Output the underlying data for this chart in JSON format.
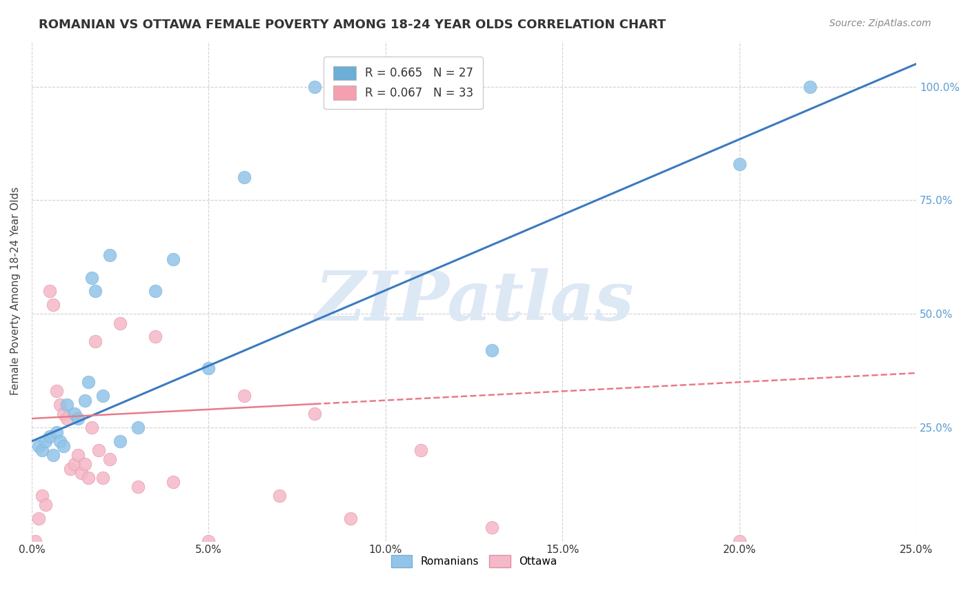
{
  "title": "ROMANIAN VS OTTAWA FEMALE POVERTY AMONG 18-24 YEAR OLDS CORRELATION CHART",
  "source": "Source: ZipAtlas.com",
  "xlabel": "",
  "ylabel": "Female Poverty Among 18-24 Year Olds",
  "xlim": [
    0.0,
    0.25
  ],
  "ylim": [
    0.0,
    1.1
  ],
  "xticks": [
    0.0,
    0.05,
    0.1,
    0.15,
    0.2,
    0.25
  ],
  "ytick_positions": [
    0.25,
    0.5,
    0.75,
    1.0
  ],
  "ytick_labels": [
    "25.0%",
    "50.0%",
    "75.0%",
    "100.0%"
  ],
  "xtick_labels": [
    "0.0%",
    "5.0%",
    "10.0%",
    "15.0%",
    "20.0%",
    "25.0%"
  ],
  "legend_items": [
    {
      "label": "R = 0.665   N = 27",
      "color": "#6baed6",
      "series": "Romanians"
    },
    {
      "label": "R = 0.067   N = 33",
      "color": "#f4a0b0",
      "series": "Ottawa"
    }
  ],
  "romanians_x": [
    0.002,
    0.003,
    0.004,
    0.005,
    0.006,
    0.007,
    0.008,
    0.009,
    0.01,
    0.012,
    0.013,
    0.015,
    0.016,
    0.017,
    0.018,
    0.02,
    0.022,
    0.025,
    0.03,
    0.035,
    0.04,
    0.05,
    0.06,
    0.08,
    0.13,
    0.2,
    0.22
  ],
  "romanians_y": [
    0.21,
    0.2,
    0.22,
    0.23,
    0.19,
    0.24,
    0.22,
    0.21,
    0.3,
    0.28,
    0.27,
    0.31,
    0.35,
    0.58,
    0.55,
    0.32,
    0.63,
    0.22,
    0.25,
    0.55,
    0.62,
    0.38,
    0.8,
    1.0,
    0.42,
    0.83,
    1.0
  ],
  "ottawa_x": [
    0.001,
    0.002,
    0.003,
    0.004,
    0.005,
    0.006,
    0.007,
    0.008,
    0.009,
    0.01,
    0.011,
    0.012,
    0.013,
    0.014,
    0.015,
    0.016,
    0.017,
    0.018,
    0.019,
    0.02,
    0.022,
    0.025,
    0.03,
    0.035,
    0.04,
    0.05,
    0.06,
    0.07,
    0.08,
    0.09,
    0.11,
    0.13,
    0.2
  ],
  "ottawa_y": [
    0.0,
    0.05,
    0.1,
    0.08,
    0.55,
    0.52,
    0.33,
    0.3,
    0.28,
    0.27,
    0.16,
    0.17,
    0.19,
    0.15,
    0.17,
    0.14,
    0.25,
    0.44,
    0.2,
    0.14,
    0.18,
    0.48,
    0.12,
    0.45,
    0.13,
    0.0,
    0.32,
    0.1,
    0.28,
    0.05,
    0.2,
    0.03,
    0.0
  ],
  "blue_line_color": "#3a7abf",
  "pink_line_color": "#e87a8a",
  "scatter_blue": "#91c4e8",
  "scatter_pink": "#f5b8c8",
  "background_color": "#ffffff",
  "grid_color": "#d0d0d0",
  "watermark": "ZIPatlas",
  "watermark_color": "#dde8f5"
}
